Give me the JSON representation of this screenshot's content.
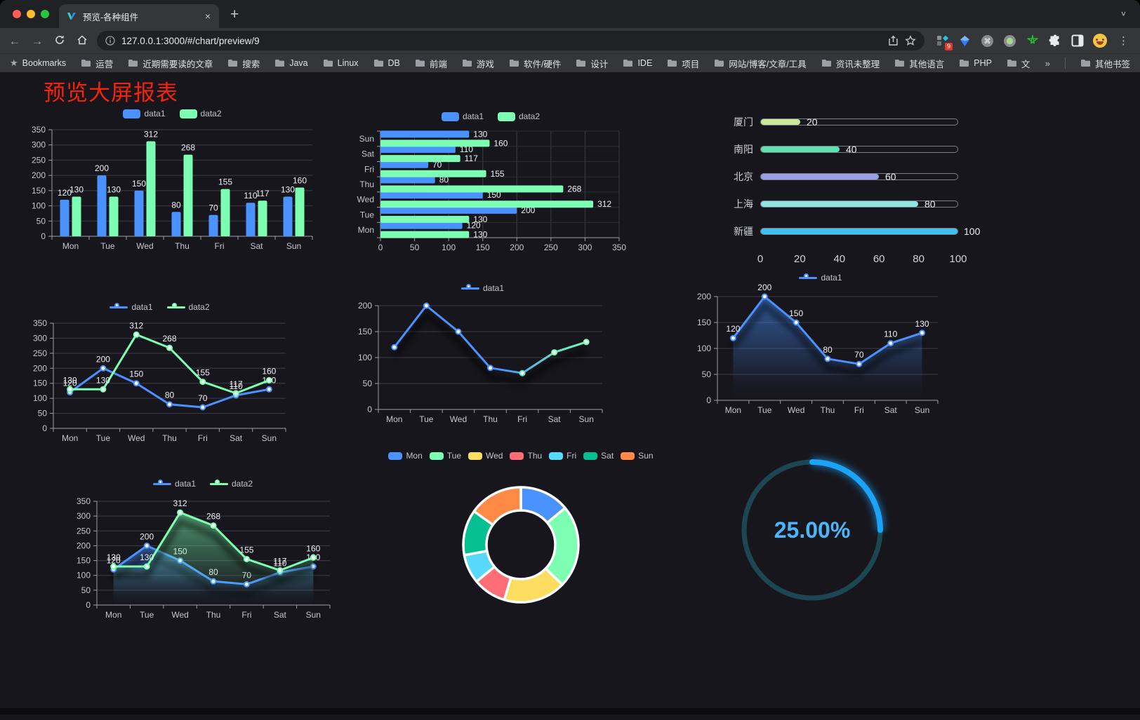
{
  "browser": {
    "tab_title": "预览-各种组件",
    "tab_close": "×",
    "new_tab": "+",
    "tab_chevron": "˅",
    "url": "127.0.0.1:3000/#/chart/preview/9",
    "menu_dots": "⋮",
    "extension_badge": "9",
    "bookmarks_label": "Bookmarks",
    "bookmarks": [
      "运营",
      "近期需要读的文章",
      "搜索",
      "Java",
      "Linux",
      "DB",
      "前端",
      "游戏",
      "软件/硬件",
      "设计",
      "IDE",
      "项目",
      "网站/博客/文章/工具",
      "资讯未整理",
      "其他语言",
      "PHP",
      "文件服务器"
    ],
    "bookmarks_overflow": "»",
    "other_bookmarks": "其他书签"
  },
  "page": {
    "title": "预览大屏报表",
    "title_color": "#f5230b"
  },
  "palette": {
    "blue": "#4992ff",
    "green": "#7cffb2",
    "yellow": "#fddd60",
    "red": "#ff6e76",
    "sky": "#58d9f9",
    "teal": "#05c091",
    "orange": "#ff8a45",
    "axis_text": "#c6c6d0",
    "axis_line": "#9d9daa",
    "grid_line": "#3c3c46",
    "data_label": "#f0f0f4"
  },
  "chart_data": [
    {
      "id": "c1",
      "type": "bar",
      "legend_icon": "rect",
      "categories": [
        "Mon",
        "Tue",
        "Wed",
        "Thu",
        "Fri",
        "Sat",
        "Sun"
      ],
      "series": [
        {
          "name": "data1",
          "color": "#4992ff",
          "values": [
            120,
            200,
            150,
            80,
            70,
            110,
            130
          ]
        },
        {
          "name": "data2",
          "color": "#7cffb2",
          "values": [
            130,
            130,
            312,
            268,
            155,
            117,
            160
          ]
        }
      ],
      "ylim": [
        0,
        350
      ],
      "ystep": 50,
      "grid": true,
      "legend_position": "top"
    },
    {
      "id": "c2",
      "type": "bar-horizontal",
      "legend_icon": "rect",
      "categories": [
        "Mon",
        "Tue",
        "Wed",
        "Thu",
        "Fri",
        "Sat",
        "Sun"
      ],
      "series": [
        {
          "name": "data1",
          "color": "#4992ff",
          "values": [
            120,
            200,
            150,
            80,
            70,
            110,
            130
          ]
        },
        {
          "name": "data2",
          "color": "#7cffb2",
          "values": [
            130,
            130,
            312,
            268,
            155,
            117,
            160
          ]
        }
      ],
      "xlim": [
        0,
        350
      ],
      "xstep": 50,
      "grid": true,
      "legend_position": "top"
    },
    {
      "id": "c3",
      "type": "bar",
      "variant": "progress",
      "categories": [
        "厦门",
        "南阳",
        "北京",
        "上海",
        "新疆"
      ],
      "values": [
        20,
        40,
        60,
        80,
        100
      ],
      "colors": [
        "#cbe7a0",
        "#5ee3b0",
        "#9aa0e8",
        "#8fe7e3",
        "#3ec2f0"
      ],
      "xlim": [
        0,
        100
      ],
      "xticks": [
        0,
        20,
        40,
        60,
        80,
        100
      ]
    },
    {
      "id": "c4",
      "type": "line",
      "legend_icon": "line",
      "categories": [
        "Mon",
        "Tue",
        "Wed",
        "Thu",
        "Fri",
        "Sat",
        "Sun"
      ],
      "series": [
        {
          "name": "data1",
          "color": "#4992ff",
          "values": [
            120,
            200,
            150,
            80,
            70,
            110,
            130
          ]
        },
        {
          "name": "data2",
          "color": "#7cffb2",
          "values": [
            130,
            130,
            312,
            268,
            155,
            117,
            160
          ]
        }
      ],
      "ylim": [
        0,
        350
      ],
      "ystep": 50,
      "labels": true,
      "grid": true,
      "legend_position": "top"
    },
    {
      "id": "c5",
      "type": "line",
      "legend_icon": "line",
      "categories": [
        "Mon",
        "Tue",
        "Wed",
        "Thu",
        "Fri",
        "Sat",
        "Sun"
      ],
      "series": [
        {
          "name": "data1",
          "color": "#4992ff",
          "color_end": "#7cffb2",
          "gradient_line": true,
          "values": [
            120,
            200,
            150,
            80,
            70,
            110,
            130
          ]
        }
      ],
      "ylim": [
        0,
        200
      ],
      "ystep": 50,
      "labels": false,
      "shadow": true,
      "grid": true,
      "legend_position": "top"
    },
    {
      "id": "c6",
      "type": "line",
      "legend_icon": "line",
      "categories": [
        "Mon",
        "Tue",
        "Wed",
        "Thu",
        "Fri",
        "Sat",
        "Sun"
      ],
      "series": [
        {
          "name": "data1",
          "color": "#4992ff",
          "area": true,
          "values": [
            120,
            200,
            150,
            80,
            70,
            110,
            130
          ]
        }
      ],
      "ylim": [
        0,
        200
      ],
      "ystep": 50,
      "labels": true,
      "shadow": true,
      "grid": true,
      "legend_position": "top"
    },
    {
      "id": "c7",
      "type": "line",
      "legend_icon": "line",
      "categories": [
        "Mon",
        "Tue",
        "Wed",
        "Thu",
        "Fri",
        "Sat",
        "Sun"
      ],
      "series": [
        {
          "name": "data1",
          "color": "#4992ff",
          "area": true,
          "values": [
            120,
            200,
            150,
            80,
            70,
            110,
            130
          ]
        },
        {
          "name": "data2",
          "color": "#7cffb2",
          "area": true,
          "values": [
            130,
            130,
            312,
            268,
            155,
            117,
            160
          ]
        }
      ],
      "ylim": [
        0,
        350
      ],
      "ystep": 50,
      "labels": true,
      "shadow": true,
      "grid": true,
      "legend_position": "top"
    },
    {
      "id": "c8",
      "type": "pie",
      "variant": "donut",
      "legend_icon": "rect",
      "legend_position": "top",
      "categories": [
        "Mon",
        "Tue",
        "Wed",
        "Thu",
        "Fri",
        "Sat",
        "Sun"
      ],
      "values": [
        120,
        200,
        150,
        80,
        70,
        110,
        130
      ],
      "colors": [
        "#4992ff",
        "#7cffb2",
        "#fddd60",
        "#ff6e76",
        "#58d9f9",
        "#05c091",
        "#ff8a45"
      ],
      "border_color": "#ffffff"
    },
    {
      "id": "c9",
      "type": "gauge",
      "variant": "ring-progress",
      "value": 25,
      "max": 100,
      "label": "25.00%",
      "arc_color": "#1aa3f8",
      "track_color": "#1c4752",
      "text_color": "#49b6f9"
    }
  ]
}
